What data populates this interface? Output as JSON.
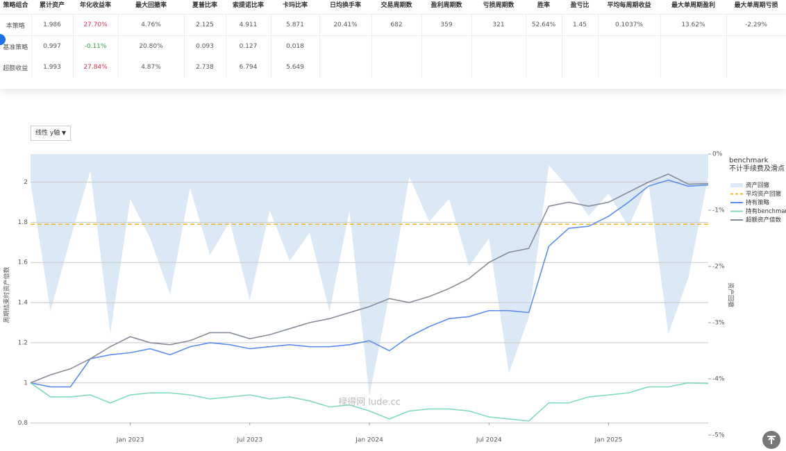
{
  "table": {
    "headers": [
      "策略组合",
      "累计资产",
      "年化收益率",
      "最大回撤率",
      "夏普比率",
      "索提诺比率",
      "卡玛比率",
      "日均换手率",
      "交易周期数",
      "盈利周期数",
      "亏损周期数",
      "胜率",
      "盈亏比",
      "平均每周期收益",
      "最大单周期盈利",
      "最大单周期亏损"
    ],
    "rows": [
      [
        "本策略",
        "1.986",
        "27.70%",
        "4.76%",
        "2.125",
        "4.911",
        "5.871",
        "20.41%",
        "682",
        "359",
        "321",
        "52.64%",
        "1.45",
        "0.1037%",
        "13.62%",
        "-2.29%"
      ],
      [
        "基准策略",
        "0.997",
        "-0.11%",
        "20.80%",
        "0.093",
        "0.127",
        "0.018"
      ],
      [
        "超额收益",
        "1.993",
        "27.84%",
        "4.87%",
        "2.738",
        "6.794",
        "5.649"
      ]
    ]
  },
  "chart_data": {
    "type": "line",
    "control": "线性 y轴",
    "legend_title": "benchmark",
    "legend_subtitle": "不计手续费及滑点",
    "ylabel": "周期结束时资产倍数",
    "y2label": "资产回撤",
    "watermark": "禄得网 lude.cc",
    "grid": true,
    "x": [
      "2022-08",
      "2022-09",
      "2022-10",
      "2022-11",
      "2022-12",
      "2023-01",
      "2023-02",
      "2023-03",
      "2023-04",
      "2023-05",
      "2023-06",
      "2023-07",
      "2023-08",
      "2023-09",
      "2023-10",
      "2023-11",
      "2023-12",
      "2024-01",
      "2024-02",
      "2024-03",
      "2024-04",
      "2024-05",
      "2024-06",
      "2024-07",
      "2024-08",
      "2024-09",
      "2024-10",
      "2024-11",
      "2024-12",
      "2025-01",
      "2025-02",
      "2025-03",
      "2025-04",
      "2025-05",
      "2025-06"
    ],
    "xlim": [
      "2022-08",
      "2025-06"
    ],
    "xticks": [
      {
        "value": "2023-01",
        "label": "Jan 2023"
      },
      {
        "value": "2023-07",
        "label": "Jul 2023"
      },
      {
        "value": "2024-01",
        "label": "Jan 2024"
      },
      {
        "value": "2024-07",
        "label": "Jul 2024"
      },
      {
        "value": "2025-01",
        "label": "Jan 2025"
      }
    ],
    "ylim": [
      0.74,
      2.14
    ],
    "yticks": [
      0.8,
      1,
      1.2,
      1.4,
      1.6,
      1.8,
      2
    ],
    "y2lim": [
      -5,
      0
    ],
    "y2ticks": [
      {
        "value": 0,
        "label": "0%"
      },
      {
        "value": -1,
        "label": "-1%"
      },
      {
        "value": -2,
        "label": "-2%"
      },
      {
        "value": -3,
        "label": "-3%"
      },
      {
        "value": -4,
        "label": "-4%"
      },
      {
        "value": -5,
        "label": "-5%"
      }
    ],
    "series": [
      {
        "name": "资产回撤",
        "type": "area",
        "axis": "y2",
        "color": "#dbe8f5",
        "values": [
          -0.5,
          -2.8,
          -1.5,
          -0.3,
          -3.2,
          -0.8,
          -1.5,
          -2.5,
          -0.6,
          -1.8,
          -1.2,
          -2.6,
          -1.0,
          -1.9,
          -1.4,
          -2.8,
          -1.0,
          -4.3,
          -2.5,
          -0.4,
          -1.2,
          -0.8,
          -2.0,
          -1.5,
          -3.9,
          -2.9,
          -0.2,
          -0.6,
          -1.1,
          -0.7,
          -1.3,
          -0.5,
          -3.2,
          -2.2,
          -0.4
        ]
      },
      {
        "name": "持有策略",
        "type": "line",
        "color": "#5b8def",
        "values": [
          1.0,
          0.98,
          0.98,
          1.12,
          1.14,
          1.15,
          1.17,
          1.14,
          1.18,
          1.2,
          1.19,
          1.17,
          1.18,
          1.19,
          1.18,
          1.18,
          1.19,
          1.21,
          1.16,
          1.23,
          1.28,
          1.32,
          1.33,
          1.36,
          1.36,
          1.35,
          1.68,
          1.77,
          1.78,
          1.83,
          1.9,
          1.98,
          2.01,
          1.98,
          1.986
        ]
      },
      {
        "name": "持有benchmark",
        "type": "line",
        "color": "#80dbb8",
        "values": [
          1.0,
          0.93,
          0.93,
          0.94,
          0.9,
          0.94,
          0.95,
          0.95,
          0.94,
          0.92,
          0.93,
          0.94,
          0.92,
          0.93,
          0.91,
          0.88,
          0.89,
          0.86,
          0.82,
          0.86,
          0.87,
          0.87,
          0.86,
          0.83,
          0.82,
          0.81,
          0.9,
          0.9,
          0.93,
          0.94,
          0.95,
          0.98,
          0.98,
          1.0,
          0.997
        ]
      },
      {
        "name": "超额资产倍数",
        "type": "line",
        "color": "#848b99",
        "values": [
          1.0,
          1.04,
          1.07,
          1.12,
          1.18,
          1.23,
          1.2,
          1.19,
          1.21,
          1.25,
          1.25,
          1.22,
          1.24,
          1.27,
          1.3,
          1.32,
          1.35,
          1.38,
          1.42,
          1.4,
          1.43,
          1.47,
          1.52,
          1.6,
          1.65,
          1.67,
          1.88,
          1.9,
          1.88,
          1.9,
          1.95,
          2.0,
          2.04,
          1.99,
          1.993
        ]
      }
    ],
    "reference_lines": [
      {
        "name": "平均资产回撤",
        "axis": "y2",
        "color": "#f0b429",
        "value": -1.25
      }
    ]
  }
}
